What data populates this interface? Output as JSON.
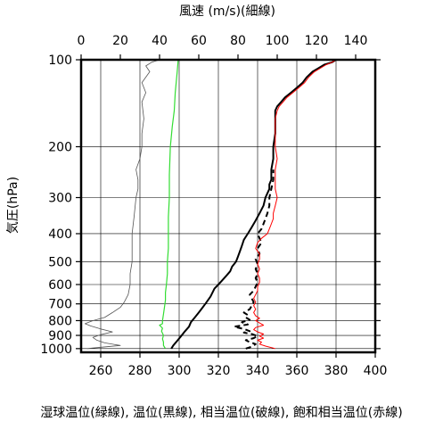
{
  "chart_data": {
    "type": "line",
    "title_top": "風速 (m/s)(細線)",
    "ylabel": "気圧(hPa)",
    "xlabel_bottom": "湿球温位(緑線), 温位(黒線), 相当温位(破線), 飽和相当温位(赤線)",
    "y_scale": "log",
    "y_range": [
      1030,
      100
    ],
    "y_ticks": [
      100,
      200,
      300,
      400,
      500,
      600,
      700,
      800,
      900,
      1000
    ],
    "x_top_range": [
      0,
      150
    ],
    "x_top_ticks": [
      0,
      20,
      40,
      60,
      80,
      100,
      120,
      140
    ],
    "x_bottom_range": [
      250,
      400
    ],
    "x_bottom_ticks": [
      260,
      280,
      300,
      320,
      340,
      360,
      380,
      400
    ],
    "grid": true,
    "series": [
      {
        "name": "風速(細線)",
        "axis": "top",
        "color": "#555555",
        "width": 0.8,
        "dash": "",
        "points": [
          [
            3,
            1000
          ],
          [
            20,
            975
          ],
          [
            12,
            955
          ],
          [
            8,
            935
          ],
          [
            6,
            915
          ],
          [
            10,
            895
          ],
          [
            16,
            875
          ],
          [
            10,
            855
          ],
          [
            5,
            835
          ],
          [
            2,
            820
          ],
          [
            6,
            800
          ],
          [
            12,
            780
          ],
          [
            16,
            750
          ],
          [
            20,
            720
          ],
          [
            22,
            690
          ],
          [
            24,
            650
          ],
          [
            25,
            600
          ],
          [
            25,
            550
          ],
          [
            26,
            500
          ],
          [
            26,
            450
          ],
          [
            26,
            400
          ],
          [
            27,
            350
          ],
          [
            28,
            300
          ],
          [
            29,
            280
          ],
          [
            29,
            260
          ],
          [
            28,
            240
          ],
          [
            30,
            220
          ],
          [
            31,
            200
          ],
          [
            31,
            180
          ],
          [
            32,
            160
          ],
          [
            31,
            140
          ],
          [
            33,
            130
          ],
          [
            31,
            120
          ],
          [
            35,
            110
          ],
          [
            33,
            105
          ],
          [
            36,
            102
          ],
          [
            40,
            100
          ]
        ]
      },
      {
        "name": "湿球温位(緑線)",
        "axis": "bottom",
        "color": "#33dd33",
        "width": 1.2,
        "dash": "",
        "points": [
          [
            293,
            1000
          ],
          [
            292,
            975
          ],
          [
            292,
            950
          ],
          [
            291.5,
            925
          ],
          [
            292,
            900
          ],
          [
            291,
            870
          ],
          [
            291.5,
            850
          ],
          [
            290,
            830
          ],
          [
            291.5,
            820
          ],
          [
            291.5,
            800
          ],
          [
            292,
            760
          ],
          [
            292.5,
            720
          ],
          [
            293,
            680
          ],
          [
            293,
            640
          ],
          [
            293.5,
            600
          ],
          [
            294,
            550
          ],
          [
            294,
            500
          ],
          [
            294.5,
            450
          ],
          [
            294.5,
            400
          ],
          [
            294.5,
            350
          ],
          [
            295,
            300
          ],
          [
            295,
            250
          ],
          [
            295.5,
            200
          ],
          [
            296.5,
            170
          ],
          [
            297.5,
            150
          ],
          [
            298,
            130
          ],
          [
            299,
            110
          ],
          [
            299.5,
            100
          ]
        ]
      },
      {
        "name": "温位(黒線)",
        "axis": "bottom",
        "color": "#000000",
        "width": 2,
        "dash": "",
        "points": [
          [
            296,
            1000
          ],
          [
            297,
            975
          ],
          [
            299,
            940
          ],
          [
            301,
            905
          ],
          [
            303,
            870
          ],
          [
            305,
            840
          ],
          [
            306,
            810
          ],
          [
            308,
            780
          ],
          [
            310,
            750
          ],
          [
            312,
            720
          ],
          [
            314,
            690
          ],
          [
            316,
            660
          ],
          [
            318,
            620
          ],
          [
            320,
            600
          ],
          [
            322,
            580
          ],
          [
            324,
            560
          ],
          [
            326,
            540
          ],
          [
            327,
            520
          ],
          [
            329,
            500
          ],
          [
            330,
            480
          ],
          [
            331,
            460
          ],
          [
            332,
            440
          ],
          [
            333,
            420
          ],
          [
            335,
            400
          ],
          [
            337,
            380
          ],
          [
            339,
            360
          ],
          [
            341,
            340
          ],
          [
            343,
            320
          ],
          [
            344,
            300
          ],
          [
            345,
            290
          ],
          [
            346,
            280
          ],
          [
            346,
            270
          ],
          [
            347,
            260
          ],
          [
            347,
            240
          ],
          [
            348,
            220
          ],
          [
            348,
            200
          ],
          [
            349,
            180
          ],
          [
            349,
            160
          ],
          [
            349,
            150
          ],
          [
            350,
            145
          ],
          [
            352,
            140
          ],
          [
            354,
            135
          ],
          [
            357,
            130
          ],
          [
            360,
            125
          ],
          [
            363,
            120
          ],
          [
            365,
            115
          ],
          [
            368,
            110
          ],
          [
            371,
            107
          ],
          [
            374,
            104
          ],
          [
            378,
            102
          ],
          [
            380,
            100
          ]
        ]
      },
      {
        "name": "相当温位(破線)",
        "axis": "bottom",
        "color": "#000000",
        "width": 2,
        "dash": "6,4",
        "points": [
          [
            334,
            1000
          ],
          [
            337,
            985
          ],
          [
            339,
            965
          ],
          [
            336,
            950
          ],
          [
            334,
            935
          ],
          [
            338,
            920
          ],
          [
            340,
            905
          ],
          [
            337,
            890
          ],
          [
            333,
            880
          ],
          [
            336,
            870
          ],
          [
            333,
            855
          ],
          [
            328,
            840
          ],
          [
            335,
            825
          ],
          [
            332,
            810
          ],
          [
            336,
            795
          ],
          [
            334,
            780
          ],
          [
            335,
            765
          ],
          [
            333,
            750
          ],
          [
            336,
            730
          ],
          [
            337,
            710
          ],
          [
            338,
            690
          ],
          [
            337,
            670
          ],
          [
            336,
            650
          ],
          [
            338,
            630
          ],
          [
            339,
            610
          ],
          [
            340,
            590
          ],
          [
            339,
            570
          ],
          [
            340,
            550
          ],
          [
            339,
            530
          ],
          [
            340,
            510
          ],
          [
            339,
            490
          ],
          [
            341,
            470
          ],
          [
            340,
            450
          ],
          [
            342,
            430
          ],
          [
            341,
            415
          ],
          [
            340,
            400
          ],
          [
            342,
            385
          ],
          [
            343,
            370
          ],
          [
            344,
            355
          ],
          [
            345,
            340
          ],
          [
            346,
            320
          ],
          [
            346,
            300
          ],
          [
            347,
            280
          ],
          [
            348,
            260
          ],
          [
            348,
            240
          ]
        ]
      },
      {
        "name": "飽和相当温位(赤線)",
        "axis": "bottom",
        "color": "#ff0000",
        "width": 1,
        "dash": "",
        "points": [
          [
            349,
            1000
          ],
          [
            344,
            980
          ],
          [
            341,
            965
          ],
          [
            342,
            950
          ],
          [
            340,
            935
          ],
          [
            343,
            920
          ],
          [
            341,
            905
          ],
          [
            343,
            890
          ],
          [
            340,
            875
          ],
          [
            338,
            860
          ],
          [
            339,
            845
          ],
          [
            343,
            830
          ],
          [
            341,
            815
          ],
          [
            339,
            800
          ],
          [
            341,
            785
          ],
          [
            339,
            770
          ],
          [
            338,
            750
          ],
          [
            339,
            730
          ],
          [
            338,
            710
          ],
          [
            339,
            690
          ],
          [
            338,
            670
          ],
          [
            339,
            650
          ],
          [
            340,
            630
          ],
          [
            340,
            610
          ],
          [
            341,
            590
          ],
          [
            341,
            570
          ],
          [
            340,
            550
          ],
          [
            341,
            530
          ],
          [
            340,
            510
          ],
          [
            341,
            490
          ],
          [
            341,
            470
          ],
          [
            339,
            450
          ],
          [
            340,
            430
          ],
          [
            342,
            415
          ],
          [
            345,
            400
          ],
          [
            346,
            385
          ],
          [
            347,
            370
          ],
          [
            348,
            355
          ],
          [
            348,
            340
          ],
          [
            349,
            320
          ],
          [
            350,
            300
          ],
          [
            349,
            280
          ],
          [
            349,
            260
          ],
          [
            349,
            240
          ],
          [
            350,
            220
          ],
          [
            349,
            200
          ],
          [
            349,
            180
          ],
          [
            349,
            160
          ],
          [
            350,
            150
          ],
          [
            351,
            145
          ],
          [
            353,
            140
          ],
          [
            355,
            135
          ],
          [
            358,
            130
          ],
          [
            361,
            125
          ],
          [
            364,
            120
          ],
          [
            366,
            115
          ],
          [
            369,
            110
          ],
          [
            372,
            107
          ],
          [
            375,
            104
          ],
          [
            378,
            102
          ],
          [
            380,
            100
          ]
        ]
      }
    ]
  }
}
